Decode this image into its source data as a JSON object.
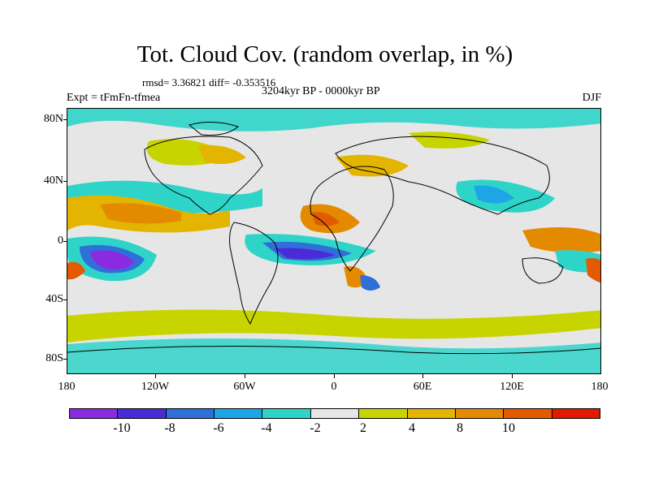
{
  "title": "Tot. Cloud Cov. (random overlap, in %)",
  "stats": "rmsd= 3.36821 diff= -0.353516",
  "experiment": "Expt = tFmFn-tfmea",
  "period": "3204kyr BP - 0000kyr BP",
  "season": "DJF",
  "lat_labels": [
    "80N",
    "40N",
    "0",
    "40S",
    "80S"
  ],
  "lon_labels": [
    "180",
    "120W",
    "60W",
    "0",
    "60E",
    "120E",
    "180"
  ],
  "colorbar": {
    "colors": [
      "#8a2be2",
      "#4b2bd8",
      "#2f6fd8",
      "#1ea5e6",
      "#2fd4c8",
      "#e6e6e6",
      "#c8d400",
      "#e3b400",
      "#e38a00",
      "#e35a00",
      "#e31a00"
    ],
    "labels": [
      "-10",
      "-8",
      "-6",
      "-4",
      "-2",
      "2",
      "4",
      "8",
      "10"
    ]
  }
}
